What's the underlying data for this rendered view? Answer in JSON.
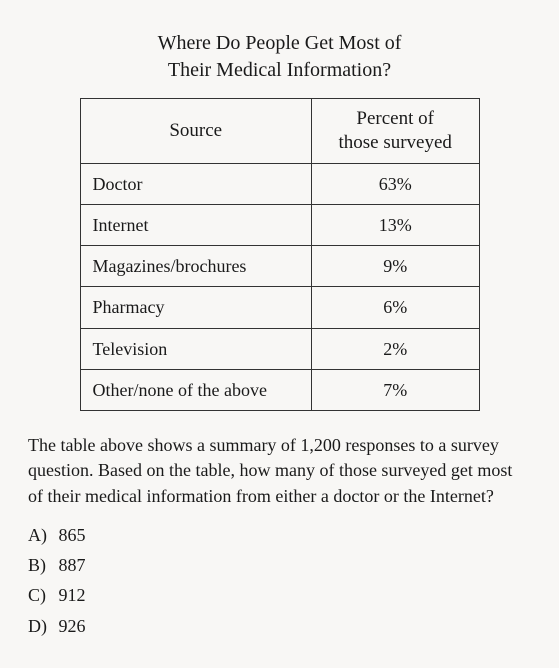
{
  "title_line1": "Where Do People Get Most of",
  "title_line2": "Their Medical Information?",
  "table": {
    "type": "table",
    "border_color": "#333333",
    "background_color": "#f8f7f5",
    "text_color": "#1a1a1a",
    "font_family": "Georgia, serif",
    "header_fontsize": 19,
    "cell_fontsize": 18,
    "columns": [
      {
        "key": "source",
        "label": "Source",
        "align": "left",
        "width_pct": 58
      },
      {
        "key": "percent",
        "label": "Percent of\nthose surveyed",
        "align": "center",
        "width_pct": 42
      }
    ],
    "rows": [
      {
        "source": "Doctor",
        "percent": "63%"
      },
      {
        "source": "Internet",
        "percent": "13%"
      },
      {
        "source": "Magazines/brochures",
        "percent": "9%"
      },
      {
        "source": "Pharmacy",
        "percent": "6%"
      },
      {
        "source": "Television",
        "percent": "2%"
      },
      {
        "source": "Other/none of the above",
        "percent": "7%"
      }
    ]
  },
  "question_text": "The table above shows a summary of 1,200 responses to a survey question. Based on the table, how many of those surveyed get most of their medical information from either a doctor or the Internet?",
  "choices": [
    {
      "letter": "A)",
      "value": "865"
    },
    {
      "letter": "B)",
      "value": "887"
    },
    {
      "letter": "C)",
      "value": "912"
    },
    {
      "letter": "D)",
      "value": "926"
    }
  ]
}
